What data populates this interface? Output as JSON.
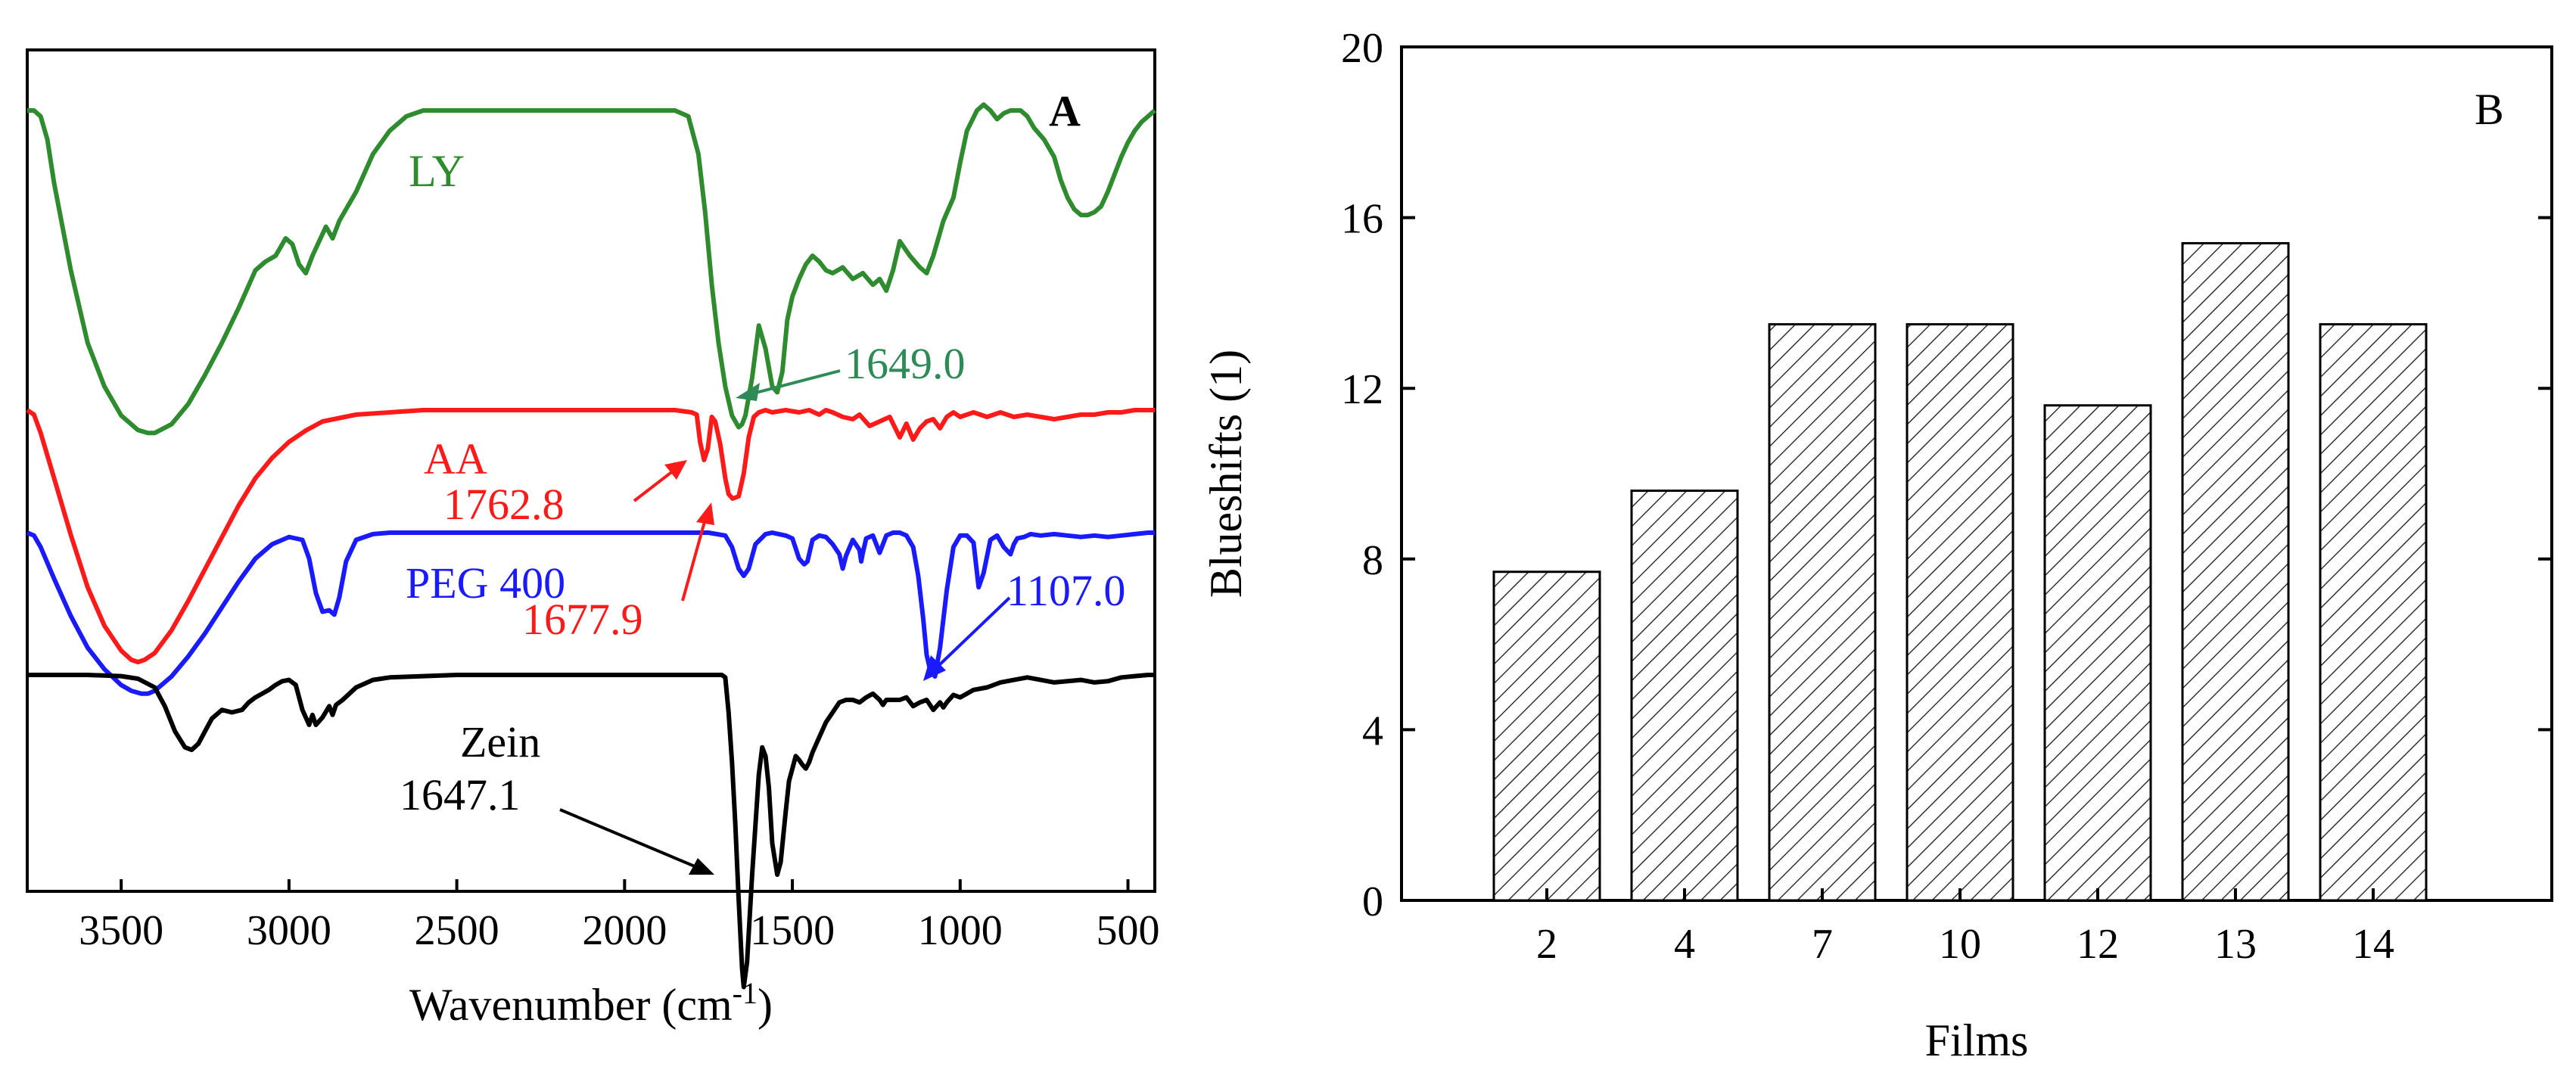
{
  "chart_data": [
    {
      "type": "line",
      "panel_label": "A",
      "title": "",
      "xlabel": "Wavenumber (cm",
      "xlabel_sup": "-1",
      "xlabel_close": ")",
      "ylabel": "",
      "xlim": [
        3780,
        420
      ],
      "x_reversed": true,
      "xticks": [
        3500,
        3000,
        2500,
        2000,
        1500,
        1000,
        500
      ],
      "yticks": [],
      "series": [
        {
          "name": "LY",
          "color": "#2e8b2e",
          "x": [
            3780,
            3760,
            3740,
            3720,
            3700,
            3650,
            3600,
            3550,
            3500,
            3450,
            3420,
            3400,
            3350,
            3300,
            3250,
            3200,
            3150,
            3100,
            3070,
            3040,
            3010,
            2990,
            2970,
            2950,
            2930,
            2910,
            2890,
            2870,
            2850,
            2800,
            2750,
            2700,
            2650,
            2600,
            2500,
            2400,
            2300,
            2200,
            2100,
            2000,
            1900,
            1850,
            1810,
            1780,
            1760,
            1740,
            1720,
            1700,
            1680,
            1660,
            1650,
            1640,
            1620,
            1600,
            1580,
            1560,
            1545,
            1530,
            1515,
            1500,
            1480,
            1460,
            1440,
            1420,
            1400,
            1380,
            1350,
            1320,
            1290,
            1260,
            1240,
            1220,
            1200,
            1180,
            1150,
            1120,
            1100,
            1080,
            1060,
            1050,
            1020,
            1000,
            980,
            950,
            930,
            910,
            890,
            870,
            850,
            820,
            800,
            780,
            750,
            720,
            700,
            680,
            660,
            640,
            620,
            600,
            580,
            560,
            540,
            520,
            500,
            480,
            460,
            440,
            430,
            420
          ],
          "y": [
            1.0,
            1.0,
            0.98,
            0.9,
            0.75,
            0.45,
            0.2,
            0.05,
            -0.05,
            -0.1,
            -0.11,
            -0.11,
            -0.08,
            -0.01,
            0.09,
            0.2,
            0.32,
            0.45,
            0.48,
            0.5,
            0.56,
            0.54,
            0.47,
            0.44,
            0.5,
            0.55,
            0.6,
            0.56,
            0.62,
            0.72,
            0.85,
            0.93,
            0.98,
            1.0,
            1.0,
            1.0,
            1.0,
            1.0,
            1.0,
            1.0,
            1.0,
            1.0,
            0.98,
            0.85,
            0.65,
            0.4,
            0.2,
            0.05,
            -0.05,
            -0.09,
            -0.08,
            -0.05,
            0.08,
            0.26,
            0.18,
            0.05,
            0.03,
            0.1,
            0.28,
            0.36,
            0.42,
            0.47,
            0.5,
            0.48,
            0.45,
            0.44,
            0.46,
            0.42,
            0.44,
            0.4,
            0.42,
            0.38,
            0.45,
            0.55,
            0.5,
            0.46,
            0.44,
            0.5,
            0.58,
            0.62,
            0.7,
            0.82,
            0.93,
            1.0,
            1.02,
            1.0,
            0.97,
            0.99,
            1.0,
            1.0,
            0.98,
            0.94,
            0.9,
            0.84,
            0.76,
            0.7,
            0.66,
            0.64,
            0.64,
            0.65,
            0.67,
            0.72,
            0.78,
            0.84,
            0.89,
            0.93,
            0.96,
            0.98,
            0.99,
            1.0
          ]
        },
        {
          "name": "AA",
          "color": "#ff1a1a",
          "x": [
            3780,
            3760,
            3740,
            3700,
            3650,
            3600,
            3550,
            3500,
            3470,
            3450,
            3430,
            3400,
            3350,
            3300,
            3250,
            3200,
            3150,
            3100,
            3050,
            3000,
            2950,
            2900,
            2800,
            2700,
            2600,
            2500,
            2400,
            2300,
            2200,
            2100,
            2000,
            1900,
            1850,
            1800,
            1785,
            1775,
            1763,
            1752,
            1740,
            1730,
            1715,
            1700,
            1690,
            1678,
            1660,
            1645,
            1630,
            1615,
            1600,
            1580,
            1560,
            1520,
            1480,
            1450,
            1420,
            1400,
            1380,
            1350,
            1320,
            1300,
            1270,
            1240,
            1210,
            1180,
            1160,
            1140,
            1120,
            1100,
            1080,
            1060,
            1040,
            1020,
            1000,
            960,
            920,
            880,
            840,
            800,
            760,
            720,
            680,
            640,
            600,
            560,
            520,
            480,
            440,
            420
          ],
          "y": [
            1.0,
            0.98,
            0.9,
            0.7,
            0.45,
            0.22,
            0.05,
            -0.06,
            -0.1,
            -0.11,
            -0.1,
            -0.07,
            0.03,
            0.16,
            0.3,
            0.44,
            0.58,
            0.7,
            0.79,
            0.86,
            0.91,
            0.95,
            0.98,
            0.99,
            1.0,
            1.0,
            1.0,
            1.0,
            1.0,
            1.0,
            1.0,
            1.0,
            1.0,
            0.99,
            0.98,
            0.86,
            0.78,
            0.83,
            0.97,
            0.95,
            0.85,
            0.7,
            0.63,
            0.61,
            0.62,
            0.72,
            0.88,
            0.97,
            0.99,
            1.0,
            0.99,
            1.0,
            0.99,
            1.0,
            0.98,
            1.0,
            0.99,
            0.97,
            0.96,
            0.98,
            0.93,
            0.95,
            0.97,
            0.88,
            0.94,
            0.87,
            0.92,
            0.95,
            0.96,
            0.92,
            0.97,
            0.99,
            0.97,
            0.99,
            0.97,
            0.99,
            0.97,
            0.98,
            0.97,
            0.96,
            0.97,
            0.98,
            0.98,
            0.99,
            0.99,
            1.0,
            1.0,
            1.0
          ]
        },
        {
          "name": "PEG 400",
          "color": "#1a1aff",
          "x": [
            3780,
            3760,
            3740,
            3700,
            3650,
            3600,
            3550,
            3500,
            3470,
            3440,
            3420,
            3400,
            3350,
            3300,
            3250,
            3200,
            3150,
            3100,
            3050,
            3000,
            2960,
            2940,
            2920,
            2900,
            2880,
            2865,
            2850,
            2830,
            2800,
            2750,
            2700,
            2600,
            2500,
            2400,
            2300,
            2200,
            2100,
            2000,
            1900,
            1800,
            1750,
            1700,
            1680,
            1660,
            1645,
            1630,
            1610,
            1580,
            1560,
            1540,
            1520,
            1500,
            1480,
            1465,
            1455,
            1440,
            1420,
            1400,
            1380,
            1360,
            1350,
            1340,
            1320,
            1300,
            1295,
            1290,
            1280,
            1260,
            1250,
            1240,
            1220,
            1200,
            1180,
            1160,
            1140,
            1125,
            1110,
            1100,
            1090,
            1075,
            1060,
            1040,
            1020,
            1000,
            980,
            960,
            945,
            930,
            910,
            890,
            870,
            850,
            840,
            830,
            810,
            790,
            760,
            720,
            680,
            640,
            600,
            560,
            520,
            480,
            440,
            420
          ],
          "y": [
            1.0,
            0.98,
            0.9,
            0.68,
            0.42,
            0.2,
            0.05,
            -0.06,
            -0.1,
            -0.12,
            -0.12,
            -0.1,
            0.0,
            0.14,
            0.3,
            0.48,
            0.66,
            0.82,
            0.92,
            0.97,
            0.95,
            0.82,
            0.58,
            0.45,
            0.46,
            0.43,
            0.55,
            0.8,
            0.95,
            0.99,
            1.0,
            1.0,
            1.0,
            1.0,
            1.0,
            1.0,
            1.0,
            1.0,
            1.0,
            1.0,
            1.0,
            0.98,
            0.9,
            0.75,
            0.7,
            0.75,
            0.92,
            0.99,
            1.0,
            0.99,
            0.98,
            0.96,
            0.82,
            0.78,
            0.8,
            0.95,
            0.98,
            0.97,
            0.92,
            0.85,
            0.75,
            0.84,
            0.95,
            0.88,
            0.8,
            0.86,
            0.96,
            0.98,
            0.92,
            0.86,
            0.98,
            1.0,
            1.0,
            0.98,
            0.9,
            0.7,
            0.4,
            0.15,
            0.05,
            0.0,
            0.2,
            0.6,
            0.9,
            0.98,
            0.98,
            0.93,
            0.62,
            0.72,
            0.95,
            0.98,
            0.9,
            0.85,
            0.92,
            0.96,
            0.97,
            0.99,
            0.98,
            0.99,
            0.98,
            0.97,
            0.98,
            0.97,
            0.98,
            0.99,
            1.0,
            1.0
          ]
        },
        {
          "name": "Zein",
          "color": "#000000",
          "x": [
            3780,
            3700,
            3600,
            3500,
            3450,
            3400,
            3370,
            3340,
            3310,
            3290,
            3270,
            3250,
            3230,
            3200,
            3170,
            3140,
            3120,
            3100,
            3080,
            3060,
            3040,
            3020,
            3000,
            2980,
            2960,
            2940,
            2930,
            2920,
            2900,
            2880,
            2870,
            2860,
            2840,
            2800,
            2750,
            2700,
            2600,
            2500,
            2400,
            2300,
            2200,
            2100,
            2000,
            1900,
            1800,
            1750,
            1720,
            1710,
            1700,
            1690,
            1680,
            1670,
            1660,
            1650,
            1645,
            1635,
            1620,
            1600,
            1590,
            1580,
            1570,
            1560,
            1545,
            1535,
            1520,
            1510,
            1500,
            1490,
            1480,
            1470,
            1460,
            1450,
            1440,
            1420,
            1400,
            1380,
            1360,
            1340,
            1320,
            1300,
            1280,
            1260,
            1240,
            1230,
            1220,
            1200,
            1180,
            1160,
            1140,
            1120,
            1100,
            1080,
            1060,
            1050,
            1040,
            1020,
            1000,
            960,
            920,
            880,
            840,
            800,
            760,
            720,
            680,
            640,
            600,
            560,
            520,
            480,
            440,
            420
          ],
          "y": [
            1.0,
            1.0,
            1.0,
            0.99,
            0.97,
            0.9,
            0.75,
            0.55,
            0.42,
            0.4,
            0.45,
            0.55,
            0.65,
            0.72,
            0.7,
            0.72,
            0.78,
            0.82,
            0.85,
            0.88,
            0.92,
            0.95,
            0.96,
            0.92,
            0.72,
            0.6,
            0.68,
            0.6,
            0.66,
            0.75,
            0.68,
            0.76,
            0.8,
            0.9,
            0.96,
            0.98,
            0.99,
            1.0,
            1.0,
            1.0,
            1.0,
            1.0,
            1.0,
            1.0,
            1.0,
            1.0,
            1.0,
            1.0,
            0.98,
            0.7,
            0.3,
            -0.2,
            -0.8,
            -1.35,
            -1.5,
            -1.3,
            -0.6,
            0.2,
            0.42,
            0.35,
            0.1,
            -0.35,
            -0.6,
            -0.5,
            -0.1,
            0.15,
            0.25,
            0.35,
            0.32,
            0.28,
            0.25,
            0.3,
            0.38,
            0.5,
            0.62,
            0.7,
            0.78,
            0.8,
            0.8,
            0.78,
            0.82,
            0.85,
            0.8,
            0.76,
            0.8,
            0.8,
            0.8,
            0.82,
            0.75,
            0.78,
            0.8,
            0.72,
            0.78,
            0.74,
            0.78,
            0.84,
            0.82,
            0.88,
            0.9,
            0.94,
            0.96,
            0.98,
            0.96,
            0.94,
            0.95,
            0.96,
            0.94,
            0.95,
            0.98,
            0.99,
            1.0,
            1.0
          ]
        }
      ],
      "annotations": [
        {
          "text": "LY",
          "color": "#2e8b2e"
        },
        {
          "text": "1649.0",
          "color": "#2e8b57"
        },
        {
          "text": "AA",
          "color": "#ff1a1a"
        },
        {
          "text": "1762.8",
          "color": "#ff1a1a"
        },
        {
          "text": "1677.9",
          "color": "#ff1a1a"
        },
        {
          "text": "PEG 400",
          "color": "#1a1aff"
        },
        {
          "text": "1107.0",
          "color": "#1a1aff"
        },
        {
          "text": "Zein",
          "color": "#000000"
        },
        {
          "text": "1647.1",
          "color": "#000000"
        }
      ],
      "legend": "none"
    },
    {
      "type": "bar",
      "panel_label": "B",
      "title": "",
      "xlabel": "Films",
      "ylabel": "Blueshifts (1)",
      "categories": [
        "2",
        "4",
        "7",
        "10",
        "12",
        "13",
        "14"
      ],
      "values": [
        7.7,
        9.6,
        13.5,
        13.5,
        11.6,
        15.4,
        13.5
      ],
      "ylim": [
        0,
        20
      ],
      "yticks": [
        0,
        4,
        8,
        12,
        16,
        20
      ],
      "bar_fill": "hatched",
      "grid": false,
      "legend": "none"
    }
  ]
}
